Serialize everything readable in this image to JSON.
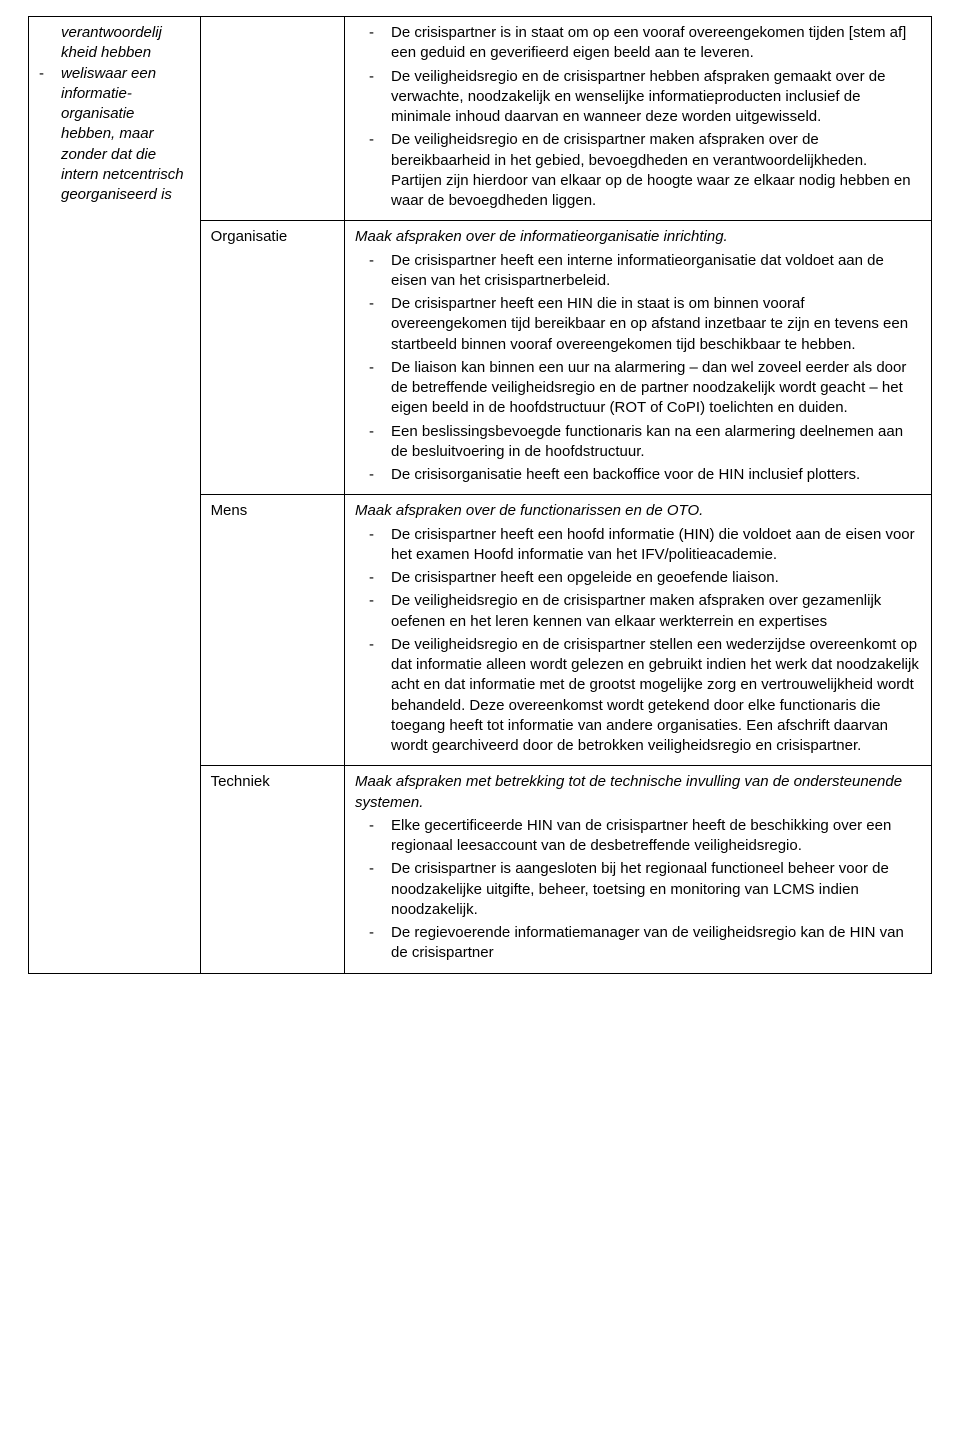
{
  "table": {
    "colA": {
      "continuation_lines": "verantwoordelij\nkheid hebben",
      "bullet_item": "weliswaar een informatie-organisatie hebben, maar zonder dat die intern netcentrisch georganiseerd is"
    },
    "row1": {
      "bullets": [
        "De crisispartner is in staat om op een vooraf overeengekomen tijden [stem af] een geduid en geverifieerd eigen beeld aan te leveren.",
        "De veiligheidsregio en de crisispartner hebben afspraken gemaakt over de verwachte, noodzakelijk en wenselijke informatieproducten inclusief de minimale inhoud daarvan en wanneer deze worden uitgewisseld.",
        "De veiligheidsregio en de crisispartner maken afspraken over de bereikbaarheid in het gebied, bevoegdheden en verantwoordelijkheden. Partijen zijn hierdoor van elkaar op de hoogte waar ze elkaar nodig hebben en waar de bevoegdheden liggen."
      ]
    },
    "row2": {
      "label": "Organisatie",
      "intro": "Maak afspraken over de informatieorganisatie inrichting.",
      "bullets": [
        "De crisispartner heeft een interne informatieorganisatie dat voldoet aan de eisen van het crisispartnerbeleid.",
        "De crisispartner heeft een HIN die in staat is om binnen vooraf overeengekomen tijd bereikbaar en op afstand inzetbaar te zijn en tevens een startbeeld binnen vooraf overeengekomen tijd beschikbaar te hebben.",
        "De liaison kan binnen een uur na alarmering – dan wel zoveel eerder als door de betreffende veiligheidsregio en de partner noodzakelijk wordt geacht – het eigen beeld in de hoofdstructuur (ROT of CoPI) toelichten en duiden.",
        "Een beslissingsbevoegde functionaris kan na een alarmering deelnemen aan de besluitvoering in de hoofdstructuur.",
        "De crisisorganisatie heeft een backoffice voor de HIN inclusief plotters."
      ]
    },
    "row3": {
      "label": "Mens",
      "intro": "Maak afspraken over de functionarissen en de OTO.",
      "bullets": [
        "De crisispartner heeft een hoofd informatie (HIN) die voldoet aan de eisen voor het examen Hoofd informatie van het IFV/politieacademie.",
        "De crisispartner heeft een opgeleide en geoefende liaison.",
        "De veiligheidsregio en de crisispartner maken afspraken over gezamenlijk oefenen en het leren kennen van elkaar werkterrein en expertises",
        "De veiligheidsregio en de crisispartner stellen een wederzijdse overeenkomt op dat informatie alleen wordt gelezen en gebruikt indien het werk dat noodzakelijk acht en dat informatie met de grootst mogelijke zorg en vertrouwelijkheid wordt behandeld. Deze overeenkomst wordt getekend door elke functionaris die toegang heeft tot informatie van andere organisaties. Een afschrift daarvan wordt gearchiveerd door de betrokken veiligheidsregio en crisispartner."
      ]
    },
    "row4": {
      "label": "Techniek",
      "intro": "Maak afspraken met betrekking tot de technische invulling van de ondersteunende systemen.",
      "bullets": [
        "Elke gecertificeerde HIN van de crisispartner heeft de beschikking over een regionaal leesaccount van de desbetreffende veiligheidsregio.",
        "De crisispartner is aangesloten bij het regionaal functioneel beheer voor de noodzakelijke uitgifte, beheer, toetsing en monitoring van LCMS indien noodzakelijk.",
        "De regievoerende informatiemanager van de veiligheidsregio kan de HIN van de crisispartner"
      ]
    }
  }
}
